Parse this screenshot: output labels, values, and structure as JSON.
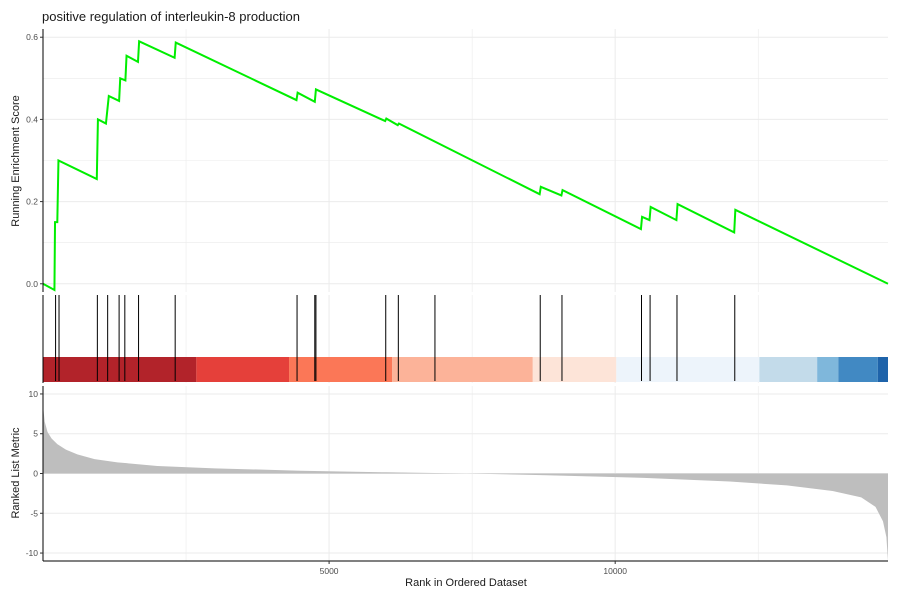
{
  "chart_data": {
    "type": "line",
    "title": "positive regulation of interleukin-8 production",
    "xlabel": "Rank in Ordered Dataset",
    "xlim": [
      0,
      14768
    ],
    "x_ticks": [
      5000,
      10000
    ],
    "x_tick_labels": [
      "5000",
      "10000"
    ],
    "grid": true,
    "colors": {
      "running_score": "#00ee00",
      "hits": "#000000",
      "ranked_fill": "#bebebe",
      "gridline": "#ebebeb"
    },
    "running_score": {
      "ylabel": "Running Enrichment Score",
      "ylim": [
        -0.02,
        0.62
      ],
      "y_ticks": [
        0.0,
        0.2,
        0.4,
        0.6
      ],
      "y_tick_labels": [
        "0.0",
        "0.2",
        "0.4",
        "0.6"
      ],
      "points": [
        [
          0,
          0.0
        ],
        [
          200,
          -0.015
        ],
        [
          210,
          0.15
        ],
        [
          250,
          0.15
        ],
        [
          270,
          0.3
        ],
        [
          940,
          0.255
        ],
        [
          960,
          0.4
        ],
        [
          1100,
          0.39
        ],
        [
          1150,
          0.457
        ],
        [
          1330,
          0.445
        ],
        [
          1350,
          0.5
        ],
        [
          1440,
          0.495
        ],
        [
          1460,
          0.555
        ],
        [
          1660,
          0.54
        ],
        [
          1680,
          0.59
        ],
        [
          2300,
          0.55
        ],
        [
          2320,
          0.587
        ],
        [
          4430,
          0.447
        ],
        [
          4450,
          0.465
        ],
        [
          4750,
          0.443
        ],
        [
          4770,
          0.473
        ],
        [
          5980,
          0.396
        ],
        [
          6000,
          0.402
        ],
        [
          6200,
          0.386
        ],
        [
          6220,
          0.39
        ],
        [
          8680,
          0.218
        ],
        [
          8700,
          0.236
        ],
        [
          9060,
          0.215
        ],
        [
          9080,
          0.228
        ],
        [
          10450,
          0.133
        ],
        [
          10470,
          0.163
        ],
        [
          10600,
          0.155
        ],
        [
          10620,
          0.187
        ],
        [
          11070,
          0.155
        ],
        [
          11090,
          0.194
        ],
        [
          12080,
          0.125
        ],
        [
          12100,
          0.18
        ],
        [
          14768,
          0.0
        ]
      ]
    },
    "hit_ranks": [
      220,
      280,
      950,
      1130,
      1330,
      1430,
      1670,
      2310,
      4440,
      4750,
      4770,
      5990,
      6210,
      6850,
      8690,
      9070,
      10460,
      10610,
      11080,
      12090
    ],
    "color_bands": [
      {
        "from": 0,
        "to": 2680,
        "color": "#b2232a"
      },
      {
        "from": 2680,
        "to": 4300,
        "color": "#e5403a"
      },
      {
        "from": 4300,
        "to": 6100,
        "color": "#fb7757"
      },
      {
        "from": 6100,
        "to": 8560,
        "color": "#fcb399"
      },
      {
        "from": 8560,
        "to": 10020,
        "color": "#fde4d8"
      },
      {
        "from": 10020,
        "to": 12520,
        "color": "#edf4fb"
      },
      {
        "from": 12520,
        "to": 13530,
        "color": "#c3dbea"
      },
      {
        "from": 13530,
        "to": 13900,
        "color": "#7fb7db"
      },
      {
        "from": 13900,
        "to": 14590,
        "color": "#4189c3"
      },
      {
        "from": 14590,
        "to": 14768,
        "color": "#1e63aa"
      }
    ],
    "ranked_list": {
      "ylabel": "Ranked List Metric",
      "ylim": [
        -11,
        11
      ],
      "y_ticks": [
        10,
        5,
        0,
        -5,
        -10
      ],
      "y_tick_labels": [
        "10",
        "5",
        "0",
        "-5",
        "-10"
      ],
      "points": [
        [
          0,
          8.5
        ],
        [
          30,
          6.5
        ],
        [
          80,
          5.2
        ],
        [
          150,
          4.4
        ],
        [
          250,
          3.7
        ],
        [
          400,
          3.0
        ],
        [
          600,
          2.4
        ],
        [
          900,
          1.8
        ],
        [
          1300,
          1.4
        ],
        [
          2000,
          0.95
        ],
        [
          3000,
          0.65
        ],
        [
          4500,
          0.35
        ],
        [
          6000,
          0.15
        ],
        [
          7400,
          0.0
        ],
        [
          8800,
          -0.22
        ],
        [
          10500,
          -0.55
        ],
        [
          12000,
          -1.0
        ],
        [
          13000,
          -1.5
        ],
        [
          13800,
          -2.2
        ],
        [
          14300,
          -3.0
        ],
        [
          14550,
          -4.2
        ],
        [
          14680,
          -6.0
        ],
        [
          14740,
          -8.0
        ],
        [
          14768,
          -11.0
        ]
      ]
    }
  }
}
